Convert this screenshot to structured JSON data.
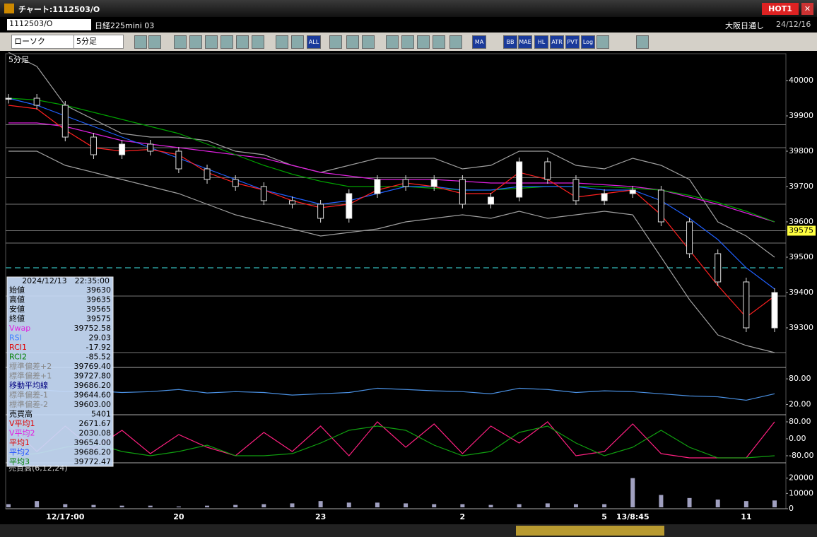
{
  "window": {
    "title": "チャート:1112503/O",
    "hot": "HOT1"
  },
  "header": {
    "code": "1112503/O",
    "name": "日経225mini 03",
    "session": "大阪日通し",
    "date": "24/12/16"
  },
  "toolbar": {
    "chart_type": "ローソク",
    "interval": "5分足",
    "buttons": [
      "ALL",
      "MA",
      "BB",
      "MAE",
      "HL",
      "ATR",
      "PVT",
      "Log"
    ]
  },
  "interval_label": "5分足",
  "info_panel": {
    "datetime": "2024/12/13　22:35:00",
    "rows": [
      [
        "始値",
        "39630",
        "#000"
      ],
      [
        "高値",
        "39635",
        "#000"
      ],
      [
        "安値",
        "39565",
        "#000"
      ],
      [
        "終値",
        "39575",
        "#000"
      ],
      [
        "Vwap",
        "39752.58",
        "#e020e0"
      ],
      [
        "RSI",
        "29.03",
        "#4080ff"
      ],
      [
        "RCI1",
        "-17.92",
        "#e00000"
      ],
      [
        "RCI2",
        "-85.52",
        "#008000"
      ],
      [
        "標準偏差+2",
        "39769.40",
        "#888"
      ],
      [
        "標準偏差+1",
        "39727.80",
        "#888"
      ],
      [
        "移動平均線",
        "39686.20",
        "#000080"
      ],
      [
        "標準偏差-1",
        "39644.60",
        "#888"
      ],
      [
        "標準偏差-2",
        "39603.00",
        "#888"
      ],
      [
        "売買高",
        "5401",
        "#000"
      ],
      [
        "V平均1",
        "2671.67",
        "#e00000"
      ],
      [
        "V平均2",
        "2030.08",
        "#e020e0"
      ],
      [
        "平均1",
        "39654.00",
        "#e00000"
      ],
      [
        "平均2",
        "39686.20",
        "#2050ff"
      ],
      [
        "平均3",
        "39772.47",
        "#008000"
      ]
    ]
  },
  "chart_data": [
    {
      "type": "candlestick",
      "categories": [
        null,
        null,
        "12/17:00",
        null,
        null,
        null,
        "20",
        null,
        null,
        null,
        null,
        "23",
        null,
        null,
        null,
        null,
        "2",
        null,
        null,
        null,
        null,
        "5",
        "13/8:45",
        null,
        null,
        null,
        "11",
        null
      ],
      "values": [
        39950,
        39930,
        39840,
        39790,
        39820,
        39800,
        39750,
        39720,
        39700,
        39660,
        39650,
        39610,
        39680,
        39720,
        39700,
        39720,
        39650,
        39670,
        39770,
        39720,
        39660,
        39680,
        39690,
        39600,
        39510,
        39430,
        39300,
        39400
      ],
      "series": [
        {
          "color": "#a0a0a0",
          "values": [
            40080,
            40040,
            39930,
            39890,
            39850,
            39840,
            39840,
            39830,
            39800,
            39790,
            39760,
            39740,
            39760,
            39780,
            39780,
            39780,
            39750,
            39760,
            39800,
            39800,
            39760,
            39750,
            39780,
            39760,
            39720,
            39600,
            39560,
            39500
          ]
        },
        {
          "color": "#a0a0a0",
          "values": [
            39800,
            39800,
            39760,
            39740,
            39720,
            39700,
            39680,
            39650,
            39620,
            39600,
            39580,
            39560,
            39570,
            39580,
            39600,
            39610,
            39620,
            39610,
            39630,
            39610,
            39620,
            39630,
            39620,
            39500,
            39380,
            39280,
            39250,
            39230
          ]
        },
        {
          "color": "#e020e0",
          "values": [
            39880,
            39880,
            39870,
            39850,
            39830,
            39820,
            39810,
            39800,
            39790,
            39780,
            39760,
            39740,
            39730,
            39720,
            39720,
            39720,
            39715,
            39710,
            39710,
            39710,
            39710,
            39705,
            39700,
            39690,
            39670,
            39650,
            39625,
            39600
          ]
        },
        {
          "color": "#00a000",
          "values": [
            39950,
            39945,
            39930,
            39910,
            39890,
            39870,
            39850,
            39820,
            39790,
            39760,
            39735,
            39715,
            39700,
            39700,
            39700,
            39695,
            39690,
            39690,
            39695,
            39700,
            39700,
            39700,
            39695,
            39690,
            39675,
            39655,
            39630,
            39600
          ]
        },
        {
          "color": "#2060ff",
          "values": [
            39950,
            39930,
            39900,
            39870,
            39840,
            39810,
            39780,
            39750,
            39720,
            39690,
            39670,
            39650,
            39660,
            39680,
            39700,
            39700,
            39690,
            39690,
            39700,
            39700,
            39700,
            39690,
            39690,
            39660,
            39610,
            39550,
            39470,
            39410
          ]
        },
        {
          "color": "#ff2020",
          "values": [
            39930,
            39920,
            39860,
            39810,
            39800,
            39805,
            39790,
            39740,
            39710,
            39690,
            39660,
            39640,
            39650,
            39690,
            39710,
            39700,
            39680,
            39680,
            39740,
            39720,
            39670,
            39680,
            39690,
            39620,
            39520,
            39420,
            39330,
            39390
          ]
        }
      ],
      "hlines": [
        39875,
        39810,
        39725,
        39650,
        39575,
        39540,
        39390,
        39230
      ],
      "dashed_line": 39470,
      "last_price": 39575,
      "ylim": [
        39188,
        40076
      ],
      "yticks": [
        40000,
        39900,
        39800,
        39700,
        39600,
        39500,
        39400,
        39300
      ]
    },
    {
      "type": "line",
      "series": [
        {
          "color": "#4a90e2",
          "values": [
            45,
            55,
            50,
            52,
            48,
            50,
            55,
            47,
            50,
            48,
            42,
            45,
            48,
            58,
            55,
            52,
            50,
            45,
            58,
            55,
            48,
            52,
            50,
            45,
            40,
            38,
            30,
            45
          ]
        }
      ],
      "ylim": [
        -4,
        106.67
      ],
      "yticks": [
        {
          "value": 80,
          "label": "80.00"
        },
        {
          "value": 20,
          "label": "20.00"
        }
      ]
    },
    {
      "type": "line",
      "series": [
        {
          "color": "#ff2080",
          "values": [
            70,
            -60,
            60,
            -50,
            40,
            -70,
            20,
            -40,
            -80,
            30,
            -60,
            60,
            -80,
            80,
            -40,
            70,
            -70,
            60,
            -20,
            80,
            -80,
            -60,
            70,
            -70,
            -90,
            -90,
            -90,
            80
          ]
        },
        {
          "color": "#10a010",
          "values": [
            -80,
            -70,
            -40,
            -20,
            -60,
            -80,
            -60,
            -30,
            -80,
            -80,
            -70,
            -20,
            40,
            60,
            40,
            -30,
            -80,
            -60,
            30,
            60,
            -20,
            -80,
            -40,
            40,
            -40,
            -90,
            -90,
            -80
          ]
        }
      ],
      "ylim": [
        -113.3,
        113.3
      ],
      "yticks": [
        {
          "value": 80,
          "label": "80.00"
        },
        {
          "value": 0,
          "label": "0.00"
        },
        {
          "value": -80,
          "label": "-80.00"
        }
      ]
    },
    {
      "type": "bar",
      "title": "売買高(6,12,24)",
      "color": "#a0a0c0",
      "values": [
        3000,
        5000,
        3000,
        2500,
        2000,
        2000,
        1500,
        2000,
        2500,
        3000,
        3500,
        5000,
        4000,
        4000,
        3500,
        3000,
        3000,
        2500,
        3000,
        3500,
        3000,
        3000,
        20000,
        9000,
        7000,
        6000,
        5000,
        5401
      ],
      "ylim": [
        0,
        30000
      ],
      "yticks": [
        20000,
        10000,
        0
      ]
    }
  ]
}
